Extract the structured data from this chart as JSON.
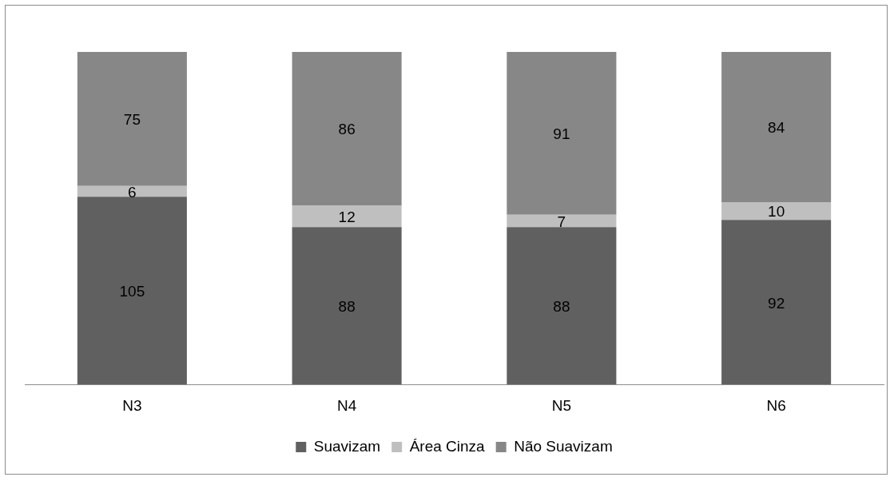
{
  "chart_data": {
    "type": "bar",
    "stacked": true,
    "categories": [
      "N3",
      "N4",
      "N5",
      "N6"
    ],
    "series": [
      {
        "name": "Suavizam",
        "color": "#606060",
        "values": [
          105,
          88,
          88,
          92
        ]
      },
      {
        "name": "Área Cinza",
        "color": "#bfbfbf",
        "values": [
          6,
          12,
          7,
          10
        ]
      },
      {
        "name": "Não Suavizam",
        "color": "#878787",
        "values": [
          75,
          86,
          91,
          84
        ]
      }
    ],
    "data_labels": true,
    "legend": "bottom",
    "grid": false
  }
}
